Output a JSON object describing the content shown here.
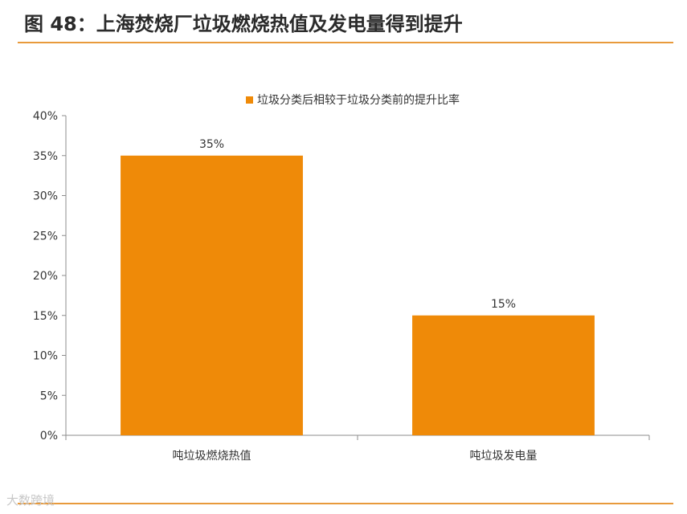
{
  "header": {
    "title": "图 48：上海焚烧厂垃圾燃烧热值及发电量得到提升"
  },
  "watermark": "大数跨境",
  "colors": {
    "bar": "#ef8a08",
    "rule": "#e89a3c",
    "axis": "#8c8c8c"
  },
  "chart_data": {
    "type": "bar",
    "title": "",
    "xlabel": "",
    "ylabel": "",
    "categories": [
      "吨垃圾燃烧热值",
      "吨垃圾发电量"
    ],
    "series": [
      {
        "name": "垃圾分类后相较于垃圾分类前的提升比率",
        "values": [
          35,
          15
        ],
        "labels": [
          "35%",
          "15%"
        ]
      }
    ],
    "ylim": [
      0,
      40
    ],
    "yticks": [
      0,
      5,
      10,
      15,
      20,
      25,
      30,
      35,
      40
    ],
    "ytick_labels": [
      "0%",
      "5%",
      "10%",
      "15%",
      "20%",
      "25%",
      "30%",
      "35%",
      "40%"
    ],
    "legend": "top-center",
    "grid": false
  }
}
